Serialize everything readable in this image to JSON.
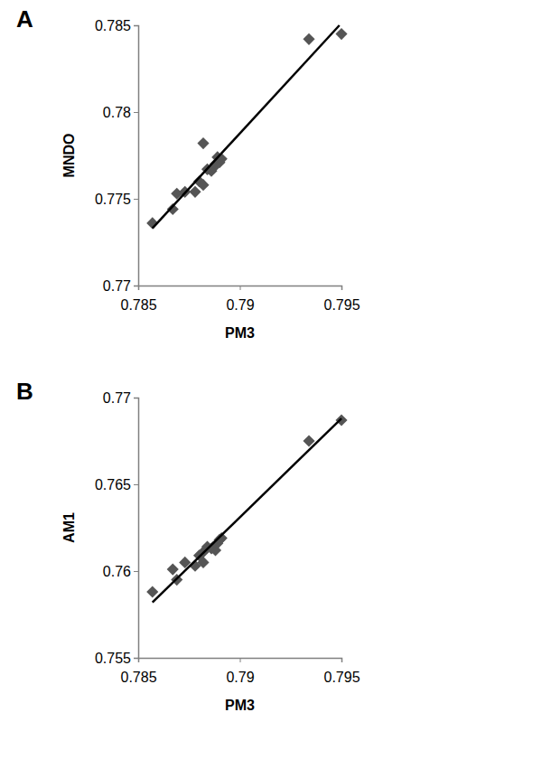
{
  "chart_data": [
    {
      "type": "scatter",
      "title": "A",
      "x_label": "PM3",
      "y_label": "MNDO",
      "xlim": [
        0.785,
        0.795
      ],
      "xticks": [
        0.785,
        0.79,
        0.795
      ],
      "ylim": [
        0.77,
        0.785
      ],
      "yticks": [
        0.77,
        0.775,
        0.78,
        0.785
      ],
      "grid": false,
      "series": [
        {
          "type": "scatter",
          "marker": "diamond",
          "color": "#555555",
          "x": [
            0.7857,
            0.7867,
            0.7869,
            0.7873,
            0.7878,
            0.788,
            0.7882,
            0.7882,
            0.7884,
            0.7886,
            0.7887,
            0.7888,
            0.7889,
            0.789,
            0.7891,
            0.7934,
            0.795
          ],
          "values": [
            0.7736,
            0.7744,
            0.7753,
            0.7754,
            0.7754,
            0.776,
            0.7782,
            0.7758,
            0.7767,
            0.7766,
            0.7768,
            0.777,
            0.7774,
            0.7771,
            0.7773,
            0.7842,
            0.7845
          ]
        },
        {
          "type": "line",
          "line_style": "solid",
          "color": "#000000",
          "x": [
            0.7857,
            0.7949
          ],
          "values": [
            0.7733,
            0.785
          ]
        }
      ]
    },
    {
      "type": "scatter",
      "title": "B",
      "x_label": "PM3",
      "y_label": "AM1",
      "xlim": [
        0.785,
        0.795
      ],
      "xticks": [
        0.785,
        0.79,
        0.795
      ],
      "ylim": [
        0.755,
        0.77
      ],
      "yticks": [
        0.755,
        0.76,
        0.765,
        0.77
      ],
      "grid": false,
      "series": [
        {
          "type": "scatter",
          "marker": "diamond",
          "color": "#555555",
          "x": [
            0.7857,
            0.7867,
            0.7869,
            0.7873,
            0.7878,
            0.788,
            0.7882,
            0.7882,
            0.7884,
            0.7886,
            0.7887,
            0.7888,
            0.7889,
            0.789,
            0.7891,
            0.7934,
            0.795
          ],
          "values": [
            0.7588,
            0.7601,
            0.7595,
            0.7605,
            0.7603,
            0.7609,
            0.7605,
            0.7611,
            0.7614,
            0.7613,
            0.7614,
            0.7612,
            0.7616,
            0.7618,
            0.7619,
            0.7675,
            0.7687
          ]
        },
        {
          "type": "line",
          "line_style": "solid",
          "color": "#000000",
          "x": [
            0.7857,
            0.795
          ],
          "values": [
            0.7582,
            0.7688
          ]
        }
      ]
    }
  ]
}
